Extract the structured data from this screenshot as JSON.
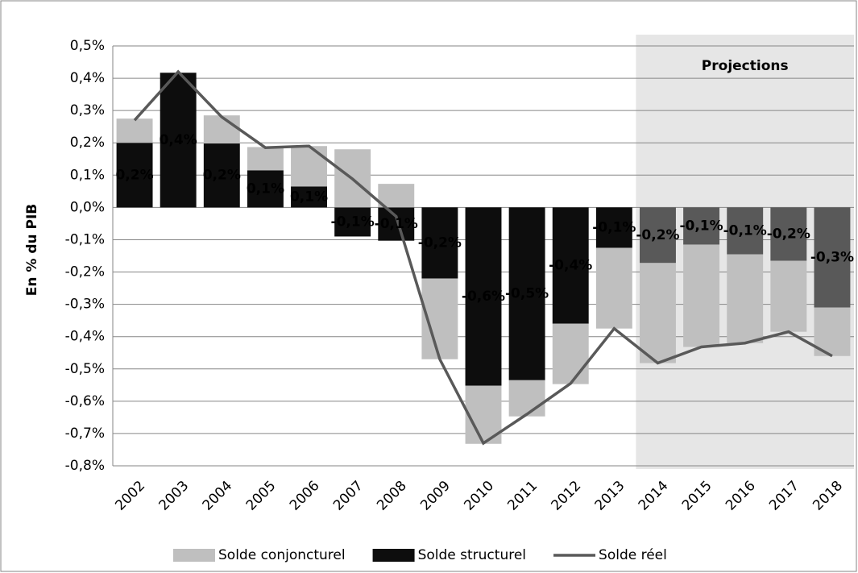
{
  "chart_data": {
    "type": "bar",
    "y_label": "En % du PIB",
    "categories": [
      "2002",
      "2003",
      "2004",
      "2005",
      "2006",
      "2007",
      "2008",
      "2009",
      "2010",
      "2011",
      "2012",
      "2013",
      "2014",
      "2015",
      "2016",
      "2017",
      "2018"
    ],
    "series": [
      {
        "name": "Solde conjoncturel",
        "type": "bar",
        "color": "#bfbfbf",
        "values": [
          0.075,
          0,
          0.087,
          0.072,
          0.125,
          0.18,
          0.073,
          -0.25,
          -0.18,
          -0.112,
          -0.187,
          -0.25,
          -0.31,
          -0.317,
          -0.275,
          -0.22,
          -0.15
        ]
      },
      {
        "name": "Solde structurel",
        "type": "bar",
        "color": "#0d0d0d",
        "colors": [
          "#0d0d0d",
          "#0d0d0d",
          "#0d0d0d",
          "#0d0d0d",
          "#0d0d0d",
          "#0d0d0d",
          "#0d0d0d",
          "#0d0d0d",
          "#0d0d0d",
          "#0d0d0d",
          "#0d0d0d",
          "#0d0d0d",
          "#595959",
          "#595959",
          "#595959",
          "#595959",
          "#595959"
        ],
        "values": [
          0.2,
          0.417,
          0.198,
          0.115,
          0.065,
          -0.09,
          -0.103,
          -0.22,
          -0.552,
          -0.535,
          -0.36,
          -0.125,
          -0.172,
          -0.115,
          -0.145,
          -0.165,
          -0.31
        ],
        "value_labels": [
          "0,2%",
          "0,4%",
          "0,2%",
          "0,1%",
          "0,1%",
          "-0,1%",
          "-0,1%",
          "-0,2%",
          "-0,6%",
          "-0,5%",
          "-0,4%",
          "-0,1%",
          "-0,2%",
          "-0,1%",
          "-0,1%",
          "-0,2%",
          "-0,3%"
        ],
        "label_color": "#ff0000"
      },
      {
        "name": "Solde réel",
        "type": "line",
        "color": "#595959",
        "values": [
          0.27,
          0.42,
          0.28,
          0.185,
          0.19,
          0.088,
          -0.028,
          -0.47,
          -0.73,
          -0.64,
          -0.545,
          -0.375,
          -0.482,
          -0.432,
          -0.42,
          -0.385,
          -0.46
        ]
      }
    ],
    "projection": {
      "label": "Projections",
      "start": "2014",
      "color": "#e6e6e6"
    },
    "ylim": [
      -0.8,
      0.5
    ],
    "yticks": [
      {
        "value": -0.8,
        "label": "-0,8%"
      },
      {
        "value": -0.7,
        "label": "-0,7%"
      },
      {
        "value": -0.6,
        "label": "-0,6%"
      },
      {
        "value": -0.5,
        "label": "-0,5%"
      },
      {
        "value": -0.4,
        "label": "-0,4%"
      },
      {
        "value": -0.3,
        "label": "-0,3%"
      },
      {
        "value": -0.2,
        "label": "-0,2%"
      },
      {
        "value": -0.1,
        "label": "-0,1%"
      },
      {
        "value": 0,
        "label": "0,0%"
      },
      {
        "value": 0.1,
        "label": "0,1%"
      },
      {
        "value": 0.2,
        "label": "0,2%"
      },
      {
        "value": 0.3,
        "label": "0,3%"
      },
      {
        "value": 0.4,
        "label": "0,4%"
      },
      {
        "value": 0.5,
        "label": "0,5%"
      }
    ],
    "grid": true
  }
}
